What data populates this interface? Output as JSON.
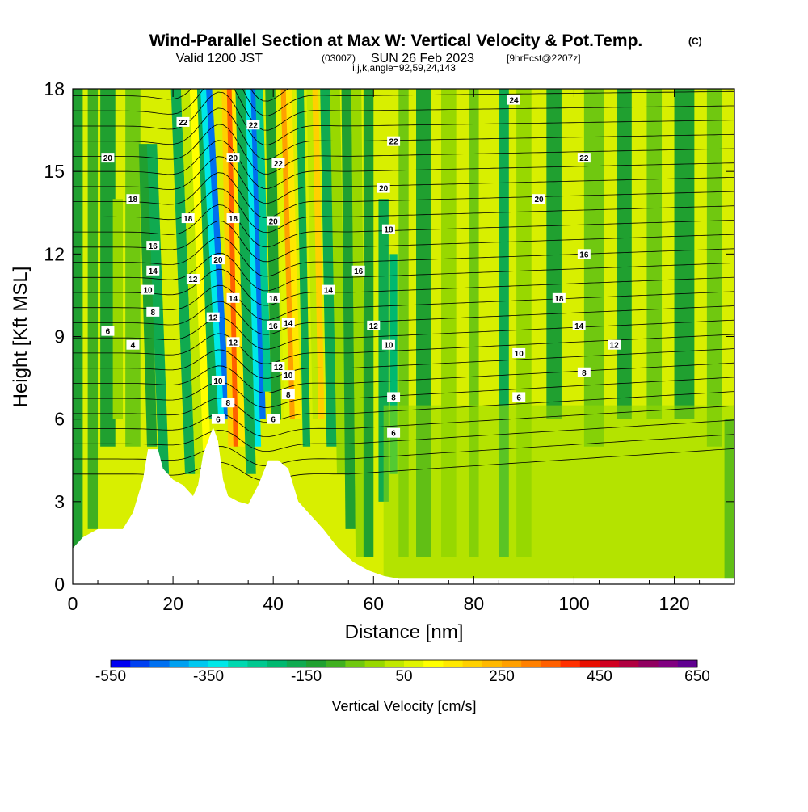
{
  "title": {
    "main": "Wind-Parallel Section at Max W: Vertical Velocity & Pot.Temp.",
    "copyright": "(C)",
    "valid_prefix": "Valid 1200 JST",
    "valid_zulu": "(0300Z)",
    "valid_date": "SUN 26 Feb 2023",
    "forecast": "[9hrFcst@2207z]",
    "indices": "i,j,k,angle=92,59,24,143"
  },
  "chart_data": {
    "type": "heatmap",
    "xlabel": "Distance [nm]",
    "ylabel": "Height [Kft MSL]",
    "xlim": [
      0,
      132
    ],
    "ylim": [
      0,
      18
    ],
    "x_ticks": [
      "0",
      "20",
      "40",
      "60",
      "80",
      "100",
      "120"
    ],
    "y_ticks": [
      "0",
      "3",
      "6",
      "9",
      "12",
      "15",
      "18"
    ],
    "x_tick_values": [
      0,
      20,
      40,
      60,
      80,
      100,
      120
    ],
    "y_tick_values": [
      0,
      3,
      6,
      9,
      12,
      15,
      18
    ],
    "colorbar": {
      "title": "Vertical Velocity [cm/s]",
      "range": [
        -550,
        650
      ],
      "tick_labels": [
        "-550",
        "-350",
        "-150",
        "50",
        "250",
        "450",
        "650"
      ],
      "tick_values": [
        -550,
        -350,
        -150,
        50,
        250,
        450,
        650
      ],
      "step": 50,
      "colors": [
        "#0000f0",
        "#0040f0",
        "#0070f0",
        "#00a0f0",
        "#00c8f0",
        "#00e8e8",
        "#00d8b0",
        "#00c890",
        "#00b870",
        "#10aa50",
        "#20a030",
        "#40b020",
        "#70c810",
        "#98d800",
        "#c0e800",
        "#e0f400",
        "#ffff00",
        "#ffe800",
        "#ffd000",
        "#ffb800",
        "#ffa000",
        "#ff8000",
        "#ff6000",
        "#ff3000",
        "#e81000",
        "#d00020",
        "#b00040",
        "#900060",
        "#800080",
        "#600090"
      ]
    },
    "contour_labels": [
      "4",
      "6",
      "8",
      "10",
      "12",
      "14",
      "16",
      "18",
      "20",
      "22",
      "24"
    ],
    "terrain_kft": [
      [
        0,
        1.3
      ],
      [
        2,
        1.7
      ],
      [
        5,
        2.0
      ],
      [
        10,
        2.0
      ],
      [
        12,
        2.6
      ],
      [
        14,
        3.8
      ],
      [
        15,
        4.9
      ],
      [
        17,
        4.9
      ],
      [
        18,
        4.2
      ],
      [
        20,
        3.8
      ],
      [
        22,
        3.6
      ],
      [
        24,
        3.2
      ],
      [
        25,
        3.6
      ],
      [
        26,
        4.7
      ],
      [
        28,
        5.7
      ],
      [
        29,
        5.2
      ],
      [
        30,
        3.8
      ],
      [
        31,
        3.2
      ],
      [
        33,
        3.0
      ],
      [
        35,
        2.9
      ],
      [
        37,
        3.6
      ],
      [
        39,
        4.5
      ],
      [
        41,
        4.5
      ],
      [
        43,
        4.2
      ],
      [
        45,
        3.0
      ],
      [
        47,
        2.6
      ],
      [
        50,
        2.0
      ],
      [
        53,
        1.3
      ],
      [
        56,
        0.8
      ],
      [
        59,
        0.5
      ],
      [
        62,
        0.3
      ],
      [
        65,
        0.2
      ],
      [
        132,
        0.2
      ]
    ]
  }
}
